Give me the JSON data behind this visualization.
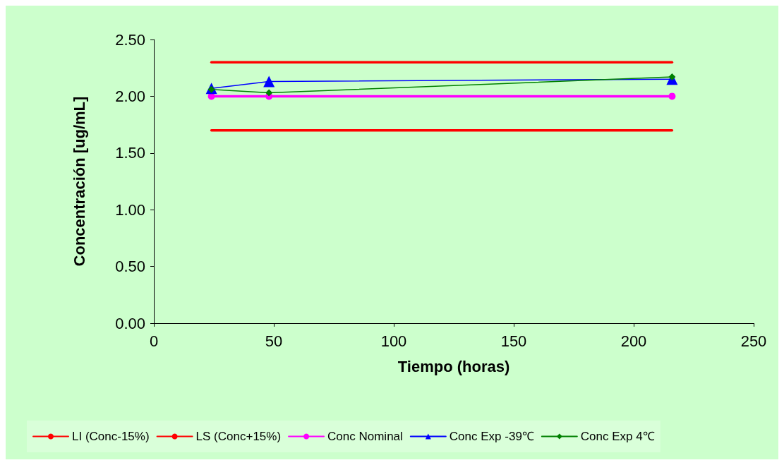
{
  "chart_data": {
    "type": "line",
    "xlabel": "Tiempo (horas)",
    "ylabel": "Concentración [ug/mL]",
    "x": [
      24,
      48,
      216
    ],
    "series": [
      {
        "name": "LI (Conc-15%)",
        "color": "#ff0000",
        "values": [
          1.7,
          1.7,
          1.7
        ],
        "marker": "none"
      },
      {
        "name": "LS (Conc+15%)",
        "color": "#ff0000",
        "values": [
          2.3,
          2.3,
          2.3
        ],
        "marker": "none"
      },
      {
        "name": "Conc Nominal",
        "color": "#ff00ff",
        "values": [
          2.0,
          2.0,
          2.0
        ],
        "marker": "circle"
      },
      {
        "name": "Conc Exp -39℃",
        "color": "#0000ff",
        "values": [
          2.07,
          2.13,
          2.15
        ],
        "marker": "triangle"
      },
      {
        "name": "Conc Exp 4℃",
        "color": "#008000",
        "values": [
          2.06,
          2.03,
          2.17
        ],
        "marker": "diamond"
      }
    ],
    "xlim": [
      0,
      250
    ],
    "xticks": [
      0,
      50,
      100,
      150,
      200,
      250
    ],
    "ylim": [
      0,
      2.5
    ],
    "yticks": [
      {
        "value": 0,
        "label": "0.00"
      },
      {
        "value": 0.5,
        "label": "0.50"
      },
      {
        "value": 1,
        "label": "1.00"
      },
      {
        "value": 1.5,
        "label": "1.50"
      },
      {
        "value": 2,
        "label": "2.00"
      },
      {
        "value": 2.5,
        "label": "2.50"
      }
    ],
    "grid": false,
    "legend": "bottom",
    "line_style": "solid"
  }
}
